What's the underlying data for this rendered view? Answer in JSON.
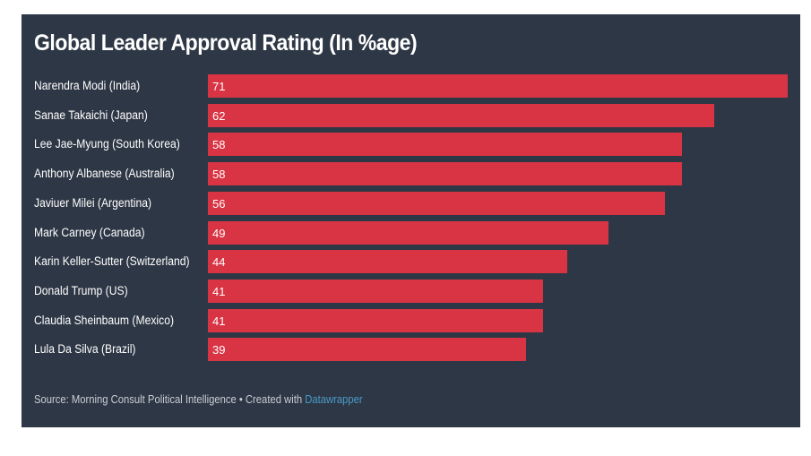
{
  "chart_data": {
    "type": "bar",
    "orientation": "horizontal",
    "title": "Global Leader Approval Rating (In %age)",
    "categories": [
      "Narendra Modi (India)",
      "Sanae Takaichi (Japan)",
      "Lee Jae-Myung (South Korea)",
      "Anthony Albanese (Australia)",
      "Javiuer Milei (Argentina)",
      "Mark Carney (Canada)",
      "Karin Keller-Sutter (Switzerland)",
      "Donald Trump (US)",
      "Claudia Sheinbaum (Mexico)",
      "Lula Da Silva (Brazil)"
    ],
    "values": [
      71,
      62,
      58,
      58,
      56,
      49,
      44,
      41,
      41,
      39
    ],
    "xlim": [
      0,
      71
    ],
    "grid": false,
    "bar_color": "#d93444",
    "background": "#2e3745"
  },
  "footer": {
    "source": "Source: Morning Consult Political Intelligence • Created with ",
    "link": "Datawrapper"
  }
}
